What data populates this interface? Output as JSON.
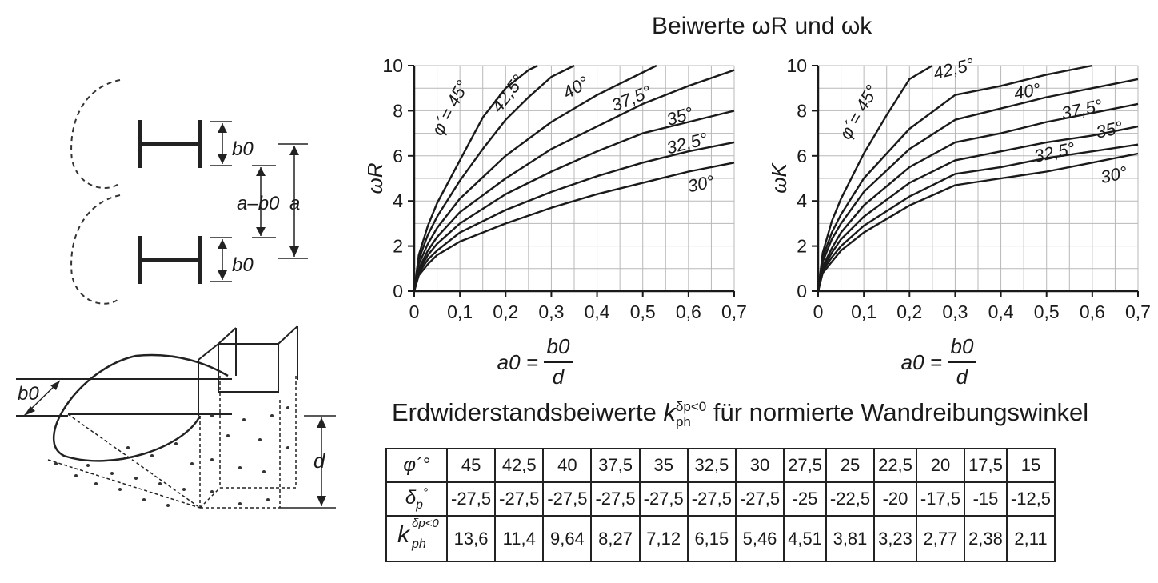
{
  "texts": {
    "main_title": "Beiwerte ωR und ωk",
    "table_title": "Erdwiderstandsbeiwerte k für normierte Wandreibungswinkel",
    "table_title_sup": "δp<0",
    "table_title_sub": "ph",
    "xaxis_a0": "a0 =",
    "xaxis_num": "b0",
    "xaxis_den": "d",
    "sketch_b0": "b0",
    "sketch_a": "a",
    "sketch_a_minus_b0": "a–b0",
    "sketch_d": "d"
  },
  "chart_data": [
    {
      "type": "line",
      "ylabel": "ωR",
      "xlabel": "a0 = b0/d",
      "xlim": [
        0,
        0.7
      ],
      "ylim": [
        0,
        10
      ],
      "xticks": [
        "0",
        "0,1",
        "0,2",
        "0,3",
        "0,4",
        "0,5",
        "0,6",
        "0,7"
      ],
      "yticks": [
        "0",
        "2",
        "4",
        "6",
        "8",
        "10"
      ],
      "grid": true,
      "series": [
        {
          "name": "φ´= 45°",
          "x": [
            0,
            0.01,
            0.03,
            0.05,
            0.1,
            0.15,
            0.2,
            0.25,
            0.27
          ],
          "y": [
            0,
            1.6,
            2.9,
            3.9,
            5.8,
            7.7,
            9.0,
            9.8,
            10
          ]
        },
        {
          "name": "42,5°",
          "x": [
            0,
            0.01,
            0.03,
            0.05,
            0.1,
            0.15,
            0.2,
            0.25,
            0.3,
            0.35
          ],
          "y": [
            0,
            1.4,
            2.5,
            3.3,
            4.9,
            6.3,
            7.6,
            8.6,
            9.5,
            10
          ]
        },
        {
          "name": "40°",
          "x": [
            0,
            0.01,
            0.03,
            0.05,
            0.1,
            0.2,
            0.3,
            0.4,
            0.5,
            0.53
          ],
          "y": [
            0,
            1.2,
            2.1,
            2.8,
            4.1,
            6.0,
            7.5,
            8.7,
            9.7,
            10
          ]
        },
        {
          "name": "37,5°",
          "x": [
            0,
            0.01,
            0.03,
            0.05,
            0.1,
            0.2,
            0.3,
            0.4,
            0.5,
            0.6,
            0.7
          ],
          "y": [
            0,
            1.0,
            1.8,
            2.4,
            3.5,
            5.0,
            6.3,
            7.3,
            8.3,
            9.1,
            9.8
          ]
        },
        {
          "name": "35°",
          "x": [
            0,
            0.01,
            0.03,
            0.05,
            0.1,
            0.2,
            0.3,
            0.4,
            0.5,
            0.6,
            0.7
          ],
          "y": [
            0,
            0.9,
            1.6,
            2.1,
            3.0,
            4.3,
            5.3,
            6.2,
            7.0,
            7.5,
            8.0
          ]
        },
        {
          "name": "32,5°",
          "x": [
            0,
            0.01,
            0.03,
            0.05,
            0.1,
            0.2,
            0.3,
            0.4,
            0.5,
            0.6,
            0.7
          ],
          "y": [
            0,
            0.8,
            1.4,
            1.8,
            2.6,
            3.6,
            4.4,
            5.1,
            5.7,
            6.2,
            6.6
          ]
        },
        {
          "name": "30°",
          "x": [
            0,
            0.01,
            0.03,
            0.05,
            0.1,
            0.2,
            0.3,
            0.4,
            0.5,
            0.6,
            0.7
          ],
          "y": [
            0,
            0.7,
            1.2,
            1.6,
            2.2,
            3.0,
            3.7,
            4.3,
            4.8,
            5.3,
            5.7
          ]
        }
      ],
      "labels": [
        {
          "text": "φ´= 45°",
          "x": 0.09,
          "y": 8.0,
          "rot": -62
        },
        {
          "text": "42,5°",
          "x": 0.215,
          "y": 8.6,
          "rot": -52
        },
        {
          "text": "40°",
          "x": 0.36,
          "y": 8.8,
          "rot": -30
        },
        {
          "text": "37,5°",
          "x": 0.48,
          "y": 8.3,
          "rot": -22
        },
        {
          "text": "35°",
          "x": 0.585,
          "y": 7.5,
          "rot": -17
        },
        {
          "text": "32,5°",
          "x": 0.6,
          "y": 6.3,
          "rot": -14
        },
        {
          "text": "30°",
          "x": 0.63,
          "y": 4.5,
          "rot": -12
        }
      ]
    },
    {
      "type": "line",
      "ylabel": "ωK",
      "xlabel": "a0 = b0/d",
      "xlim": [
        0,
        0.7
      ],
      "ylim": [
        0,
        10
      ],
      "xticks": [
        "0",
        "0,1",
        "0,2",
        "0,3",
        "0,4",
        "0,5",
        "0,6",
        "0,7"
      ],
      "yticks": [
        "0",
        "2",
        "4",
        "6",
        "8",
        "10"
      ],
      "grid": true,
      "series": [
        {
          "name": "φ´= 45°",
          "x": [
            0,
            0.01,
            0.03,
            0.05,
            0.1,
            0.15,
            0.2,
            0.25
          ],
          "y": [
            0,
            1.7,
            3.1,
            4.1,
            6.1,
            7.8,
            9.4,
            10
          ]
        },
        {
          "name": "42,5°",
          "x": [
            0,
            0.01,
            0.03,
            0.05,
            0.1,
            0.2,
            0.3,
            0.4,
            0.5,
            0.6
          ],
          "y": [
            0,
            1.5,
            2.6,
            3.4,
            5.0,
            7.2,
            8.7,
            9.1,
            9.6,
            10
          ]
        },
        {
          "name": "40°",
          "x": [
            0,
            0.01,
            0.03,
            0.05,
            0.1,
            0.2,
            0.3,
            0.4,
            0.5,
            0.6,
            0.7
          ],
          "y": [
            0,
            1.3,
            2.3,
            3.0,
            4.4,
            6.3,
            7.6,
            8.1,
            8.6,
            9.0,
            9.4
          ]
        },
        {
          "name": "37,5°",
          "x": [
            0,
            0.01,
            0.03,
            0.05,
            0.1,
            0.2,
            0.3,
            0.4,
            0.5,
            0.6,
            0.7
          ],
          "y": [
            0,
            1.1,
            1.9,
            2.6,
            3.8,
            5.5,
            6.6,
            7.0,
            7.5,
            7.9,
            8.3
          ]
        },
        {
          "name": "35°",
          "x": [
            0,
            0.01,
            0.03,
            0.05,
            0.1,
            0.2,
            0.3,
            0.4,
            0.5,
            0.6,
            0.7
          ],
          "y": [
            0,
            1.0,
            1.7,
            2.3,
            3.3,
            4.8,
            5.8,
            6.2,
            6.6,
            6.9,
            7.3
          ]
        },
        {
          "name": "32,5°",
          "x": [
            0,
            0.01,
            0.03,
            0.05,
            0.1,
            0.2,
            0.3,
            0.4,
            0.5,
            0.6,
            0.7
          ],
          "y": [
            0,
            0.9,
            1.5,
            2.0,
            2.9,
            4.2,
            5.2,
            5.5,
            5.9,
            6.2,
            6.5
          ]
        },
        {
          "name": "30°",
          "x": [
            0,
            0.01,
            0.03,
            0.05,
            0.1,
            0.2,
            0.3,
            0.4,
            0.5,
            0.6,
            0.7
          ],
          "y": [
            0,
            0.8,
            1.3,
            1.8,
            2.6,
            3.8,
            4.7,
            5.0,
            5.3,
            5.7,
            6.1
          ]
        }
      ],
      "labels": [
        {
          "text": "φ´= 45°",
          "x": 0.1,
          "y": 7.8,
          "rot": -60
        },
        {
          "text": "42,5°",
          "x": 0.3,
          "y": 9.6,
          "rot": -14
        },
        {
          "text": "40°",
          "x": 0.46,
          "y": 8.6,
          "rot": -10
        },
        {
          "text": "37,5°",
          "x": 0.58,
          "y": 7.8,
          "rot": -12
        },
        {
          "text": "35°",
          "x": 0.64,
          "y": 6.9,
          "rot": -12
        },
        {
          "text": "32,5°",
          "x": 0.52,
          "y": 5.9,
          "rot": -12
        },
        {
          "text": "30°",
          "x": 0.65,
          "y": 4.9,
          "rot": -12
        }
      ]
    }
  ],
  "table": {
    "rows": [
      {
        "header": "φ´°",
        "cells": [
          "45",
          "42,5",
          "40",
          "37,5",
          "35",
          "32,5",
          "30",
          "27,5",
          "25",
          "22,5",
          "20",
          "17,5",
          "15"
        ]
      },
      {
        "header": "δp°",
        "cells": [
          "-27,5",
          "-27,5",
          "-27,5",
          "-27,5",
          "-27,5",
          "-27,5",
          "-27,5",
          "-25",
          "-22,5",
          "-20",
          "-17,5",
          "-15",
          "-12,5"
        ]
      },
      {
        "header": "k",
        "header_sup": "δp<0",
        "header_sub": "ph",
        "cells": [
          "13,6",
          "11,4",
          "9,64",
          "8,27",
          "7,12",
          "6,15",
          "5,46",
          "4,51",
          "3,81",
          "3,23",
          "2,77",
          "2,38",
          "2,11"
        ]
      }
    ]
  }
}
